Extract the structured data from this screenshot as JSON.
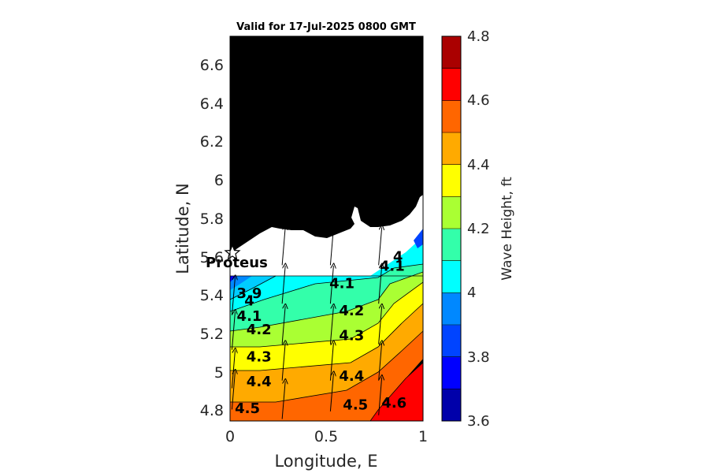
{
  "chart_data": {
    "type": "heatmap",
    "subtype": "filled contour map with wave direction arrows",
    "title": "Valid for 17-Jul-2025 0800 GMT",
    "xlabel": "Longitude, E",
    "ylabel": "Latitude, N",
    "xlim": [
      0,
      1
    ],
    "ylim": [
      4.75,
      6.75
    ],
    "xticks": [
      "0",
      "0.5",
      "1"
    ],
    "yticks": [
      "4.8",
      "5",
      "5.2",
      "5.4",
      "5.6",
      "5.8",
      "6",
      "6.2",
      "6.4",
      "6.6"
    ],
    "colorbar": {
      "label": "Wave Height, ft",
      "range": [
        3.6,
        4.8
      ],
      "ticks": [
        "3.6",
        "3.8",
        "4",
        "4.2",
        "4.4",
        "4.6",
        "4.8"
      ],
      "colormap": [
        "#0000aa",
        "#0000ff",
        "#0044ff",
        "#0088ff",
        "#00ccff",
        "#00ffff",
        "#33ffaa",
        "#66ff66",
        "#aaff33",
        "#ffff00",
        "#ffaa00",
        "#ff6600",
        "#ff0000",
        "#aa0000"
      ]
    },
    "land_color": "#000000",
    "contour_levels": [
      3.9,
      4.0,
      4.1,
      4.2,
      4.3,
      4.4,
      4.5,
      4.6
    ],
    "contour_labels": [
      {
        "text": "3.9",
        "x": 0.1,
        "y": 5.39
      },
      {
        "text": "4",
        "x": 0.1,
        "y": 5.35
      },
      {
        "text": "4.1",
        "x": 0.1,
        "y": 5.27
      },
      {
        "text": "4.2",
        "x": 0.15,
        "y": 5.2
      },
      {
        "text": "4.3",
        "x": 0.15,
        "y": 5.06
      },
      {
        "text": "4.4",
        "x": 0.15,
        "y": 4.93
      },
      {
        "text": "4.5",
        "x": 0.09,
        "y": 4.79
      },
      {
        "text": "4.1",
        "x": 0.58,
        "y": 5.44
      },
      {
        "text": "4.2",
        "x": 0.63,
        "y": 5.3
      },
      {
        "text": "4.3",
        "x": 0.63,
        "y": 5.17
      },
      {
        "text": "4.4",
        "x": 0.63,
        "y": 4.96
      },
      {
        "text": "4.5",
        "x": 0.65,
        "y": 4.81
      },
      {
        "text": "4.6",
        "x": 0.85,
        "y": 4.82
      },
      {
        "text": "4",
        "x": 0.87,
        "y": 5.58
      },
      {
        "text": "4.1",
        "x": 0.84,
        "y": 5.53
      }
    ],
    "station": {
      "name": "Proteus",
      "x": 0.01,
      "y": 5.63
    },
    "arrows": [
      {
        "x": 0.01,
        "y": 4.81
      },
      {
        "x": 0.01,
        "y": 4.92
      },
      {
        "x": 0.01,
        "y": 5.12
      },
      {
        "x": 0.01,
        "y": 5.3
      },
      {
        "x": 0.27,
        "y": 4.76
      },
      {
        "x": 0.27,
        "y": 4.96
      },
      {
        "x": 0.27,
        "y": 5.15
      },
      {
        "x": 0.27,
        "y": 5.36
      },
      {
        "x": 0.27,
        "y": 5.56
      },
      {
        "x": 0.52,
        "y": 4.8
      },
      {
        "x": 0.52,
        "y": 4.96
      },
      {
        "x": 0.52,
        "y": 5.15
      },
      {
        "x": 0.52,
        "y": 5.36
      },
      {
        "x": 0.52,
        "y": 5.56
      },
      {
        "x": 0.77,
        "y": 4.78
      },
      {
        "x": 0.77,
        "y": 4.96
      },
      {
        "x": 0.77,
        "y": 5.15
      },
      {
        "x": 0.77,
        "y": 5.36
      },
      {
        "x": 0.77,
        "y": 5.56
      }
    ]
  }
}
